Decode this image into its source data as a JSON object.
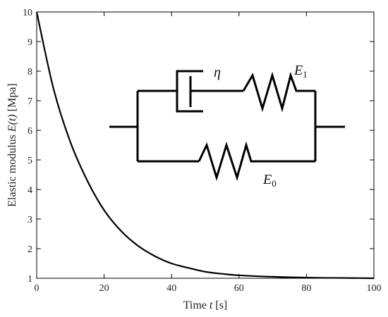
{
  "chart_data": {
    "type": "line",
    "title": "",
    "xlabel": {
      "prefix": "Time ",
      "var": "t",
      "suffix": " [s]"
    },
    "ylabel": {
      "prefix": "Elastic modulus ",
      "var": "E(t)",
      "suffix": " [Mpa]"
    },
    "xlim": [
      0,
      100
    ],
    "ylim": [
      1,
      10
    ],
    "xticks": [
      "0",
      "20",
      "40",
      "60",
      "80",
      "100"
    ],
    "yticks": [
      "1",
      "2",
      "3",
      "4",
      "5",
      "6",
      "7",
      "8",
      "9",
      "10"
    ],
    "grid": false,
    "series": [
      {
        "x": [
          0,
          5,
          10,
          15,
          20,
          25,
          30,
          35,
          40,
          45,
          50,
          55,
          60,
          70,
          80,
          90,
          100
        ],
        "y": [
          10,
          7.4,
          5.6,
          4.3,
          3.3,
          2.6,
          2.1,
          1.75,
          1.5,
          1.35,
          1.22,
          1.15,
          1.1,
          1.05,
          1.02,
          1.01,
          1.0
        ]
      }
    ],
    "annotations": {
      "eta": "η",
      "E1_main": "E",
      "E1_sub": "1",
      "E0_main": "E",
      "E0_sub": "0"
    }
  }
}
